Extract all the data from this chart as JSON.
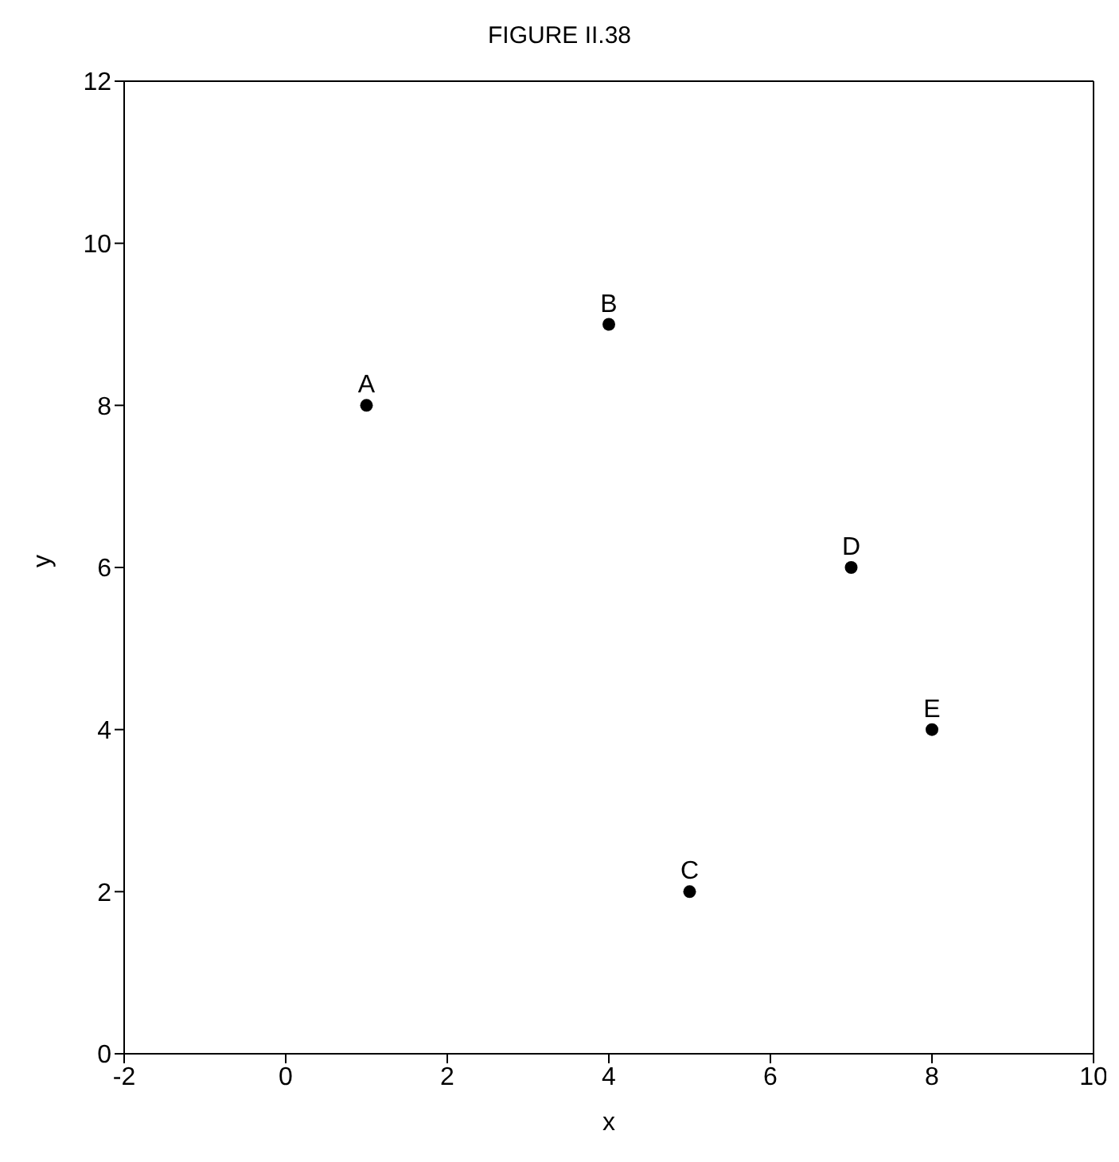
{
  "chart_data": {
    "type": "scatter",
    "title": "FIGURE II.38",
    "xlabel": "x",
    "ylabel": "y",
    "x": [
      1,
      4,
      5,
      7,
      8
    ],
    "series": [
      {
        "color": "#000000",
        "values": [
          8,
          9,
          2,
          6,
          4
        ]
      }
    ],
    "annotations": [
      {
        "text": "A",
        "x": 1,
        "y": 8
      },
      {
        "text": "B",
        "x": 4,
        "y": 9
      },
      {
        "text": "C",
        "x": 5,
        "y": 2
      },
      {
        "text": "D",
        "x": 7,
        "y": 6
      },
      {
        "text": "E",
        "x": 8,
        "y": 4
      }
    ],
    "xlim": [
      -2,
      10
    ],
    "xticks": [
      -2,
      0,
      2,
      4,
      6,
      8,
      10
    ],
    "ylim": [
      0,
      12
    ],
    "yticks": [
      0,
      2,
      4,
      6,
      8,
      10,
      12
    ],
    "marker": "circle"
  }
}
